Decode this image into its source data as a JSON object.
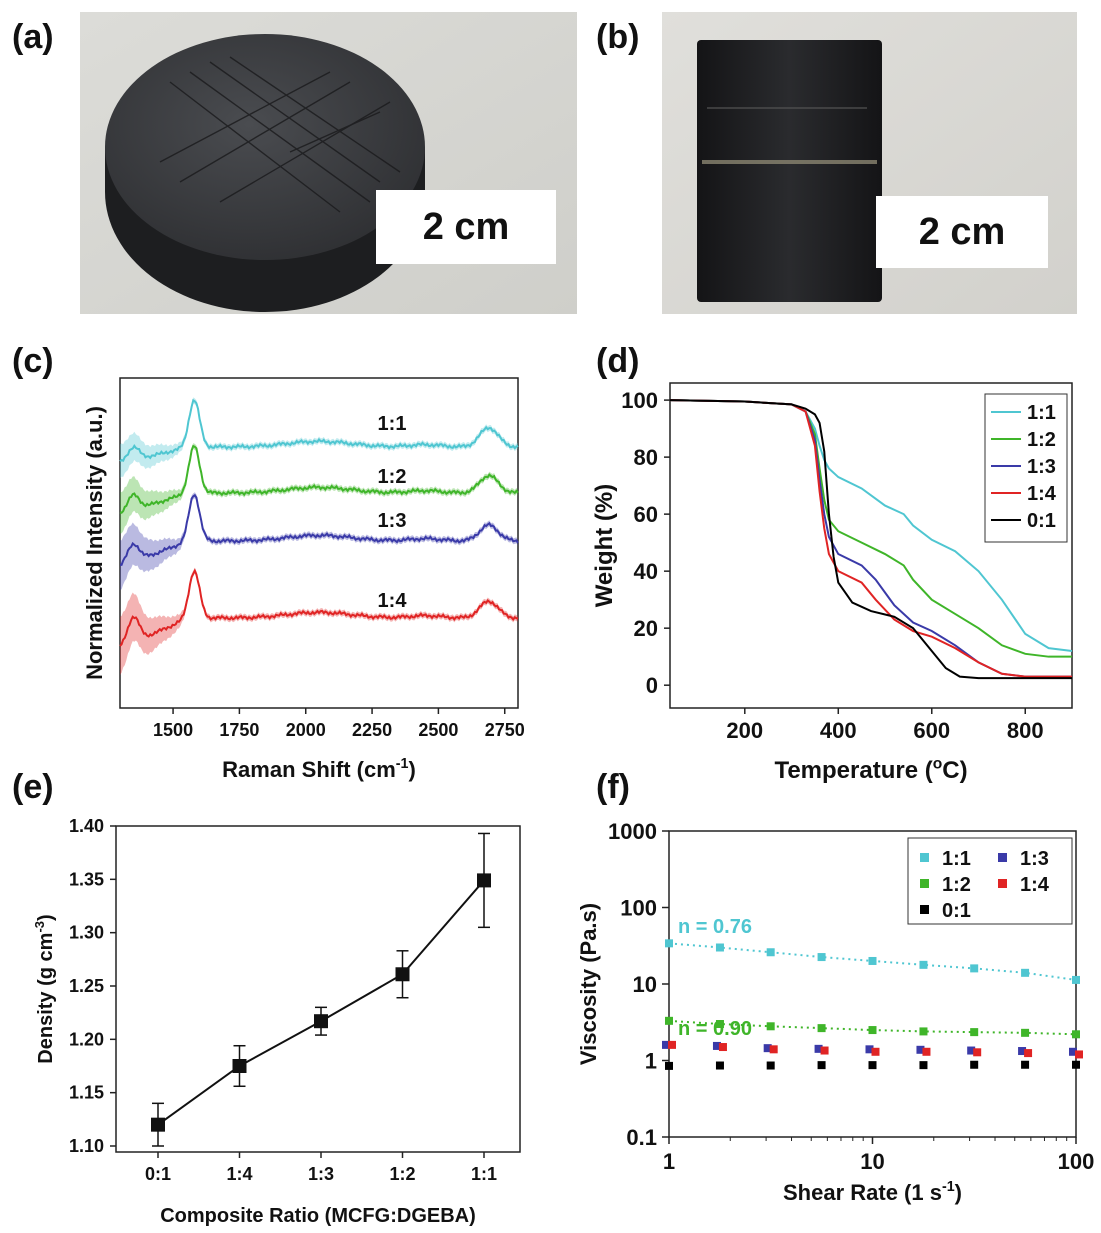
{
  "panels": {
    "a": {
      "label": "(a)",
      "scale_text": "2 cm"
    },
    "b": {
      "label": "(b)",
      "scale_text": "2 cm"
    },
    "c": {
      "label": "(c)"
    },
    "d": {
      "label": "(d)"
    },
    "e": {
      "label": "(e)"
    },
    "f": {
      "label": "(f)"
    }
  },
  "colors": {
    "r11": "#4fc6d1",
    "r12": "#3fb529",
    "r13": "#3a3aa8",
    "r14": "#e02424",
    "r01": "#000000"
  },
  "chart_data": [
    {
      "id": "c",
      "type": "line",
      "xlabel": "Raman Shift (cm-1)",
      "xlabel_base": "Raman Shift (cm",
      "xlabel_sup": "-1",
      "xlabel_end": ")",
      "ylabel": "Normalized Intensity (a.u.)",
      "xlim": [
        1300,
        2800
      ],
      "xticks": [
        1500,
        1750,
        2000,
        2250,
        2500,
        2750
      ],
      "series": [
        {
          "name": "1:1",
          "offset": 3.0,
          "peaks": {
            "D": 0.28,
            "G": 1.0,
            "2D": 0.75
          }
        },
        {
          "name": "1:2",
          "offset": 2.0,
          "peaks": {
            "D": 0.32,
            "G": 1.0,
            "2D": 0.68
          }
        },
        {
          "name": "1:3",
          "offset": 1.0,
          "peaks": {
            "D": 0.38,
            "G": 1.0,
            "2D": 0.62
          }
        },
        {
          "name": "1:4",
          "offset": 0.0,
          "peaks": {
            "D": 0.55,
            "G": 1.0,
            "2D": 0.65
          }
        }
      ]
    },
    {
      "id": "d",
      "type": "line",
      "xlabel": "Temperature (oC)",
      "xlabel_base": "Temperature (",
      "xlabel_sup": "o",
      "xlabel_end": "C)",
      "ylabel": "Weight (%)",
      "xlim": [
        40,
        900
      ],
      "ylim": [
        -8,
        106
      ],
      "xticks": [
        200,
        400,
        600,
        800
      ],
      "yticks": [
        0,
        20,
        40,
        60,
        80,
        100
      ],
      "legend": [
        "1:1",
        "1:2",
        "1:3",
        "1:4",
        "0:1"
      ],
      "legend_position": "top-right",
      "series": [
        {
          "name": "1:1",
          "x": [
            40,
            200,
            300,
            330,
            350,
            360,
            370,
            380,
            400,
            450,
            500,
            540,
            560,
            600,
            650,
            700,
            750,
            800,
            850,
            900
          ],
          "y": [
            100,
            99.5,
            98.5,
            96,
            90,
            84,
            79,
            76,
            73,
            69,
            63,
            60,
            56,
            51,
            47,
            40,
            30,
            18,
            13,
            12
          ]
        },
        {
          "name": "1:2",
          "x": [
            40,
            200,
            300,
            330,
            350,
            360,
            370,
            380,
            400,
            450,
            500,
            540,
            560,
            600,
            650,
            700,
            750,
            800,
            850,
            900
          ],
          "y": [
            100,
            99.5,
            98.5,
            96,
            88,
            76,
            65,
            58,
            54,
            50,
            46,
            42,
            37,
            30,
            25,
            20,
            14,
            11,
            10,
            10
          ]
        },
        {
          "name": "1:3",
          "x": [
            40,
            200,
            300,
            330,
            350,
            360,
            370,
            380,
            400,
            450,
            480,
            520,
            560,
            600,
            650,
            700,
            750,
            800,
            850,
            900
          ],
          "y": [
            100,
            99.5,
            98.5,
            96,
            86,
            72,
            60,
            52,
            46,
            42,
            37,
            28,
            22,
            19,
            14,
            8,
            4,
            3,
            3,
            3
          ]
        },
        {
          "name": "1:4",
          "x": [
            40,
            200,
            300,
            330,
            350,
            360,
            370,
            380,
            400,
            450,
            480,
            520,
            560,
            600,
            650,
            700,
            750,
            800,
            850,
            900
          ],
          "y": [
            100,
            99.5,
            98.5,
            96,
            84,
            68,
            55,
            46,
            40,
            36,
            30,
            23,
            19,
            17,
            13,
            8,
            4,
            3,
            3,
            3
          ]
        },
        {
          "name": "0:1",
          "x": [
            40,
            200,
            300,
            330,
            350,
            360,
            370,
            380,
            390,
            400,
            430,
            470,
            520,
            560,
            600,
            630,
            660,
            700,
            800,
            900
          ],
          "y": [
            100,
            99.5,
            98.5,
            97,
            95,
            92,
            82,
            60,
            45,
            36,
            29,
            26,
            24,
            20,
            12,
            6,
            3,
            2.5,
            2.5,
            2.5
          ]
        }
      ]
    },
    {
      "id": "e",
      "type": "line",
      "xlabel": "Composite Ratio (MCFG:DGEBA)",
      "ylabel": "Density (g cm-3)",
      "ylabel_base": "Density (g cm",
      "ylabel_sup": "-3",
      "ylabel_end": ")",
      "ylim": [
        1.1,
        1.4
      ],
      "yticks": [
        "1.10",
        "1.15",
        "1.20",
        "1.25",
        "1.30",
        "1.35",
        "1.40"
      ],
      "categories": [
        "0:1",
        "1:4",
        "1:3",
        "1:2",
        "1:1"
      ],
      "values": [
        1.12,
        1.175,
        1.217,
        1.261,
        1.349
      ],
      "errors": [
        0.02,
        0.019,
        0.013,
        0.022,
        0.044
      ]
    },
    {
      "id": "f",
      "type": "scatter",
      "xlabel": "Shear Rate (1 s-1)",
      "xlabel_base": "Shear Rate (1 s",
      "xlabel_sup": "-1",
      "xlabel_end": ")",
      "ylabel": "Viscosity (Pa.s)",
      "xscale": "log",
      "yscale": "log",
      "xlim": [
        1,
        100
      ],
      "ylim": [
        0.1,
        1000
      ],
      "xticks": [
        "1",
        "10",
        "100"
      ],
      "yticks": [
        "0.1",
        "1",
        "10",
        "100",
        "1000"
      ],
      "legend": [
        "1:1",
        "1:3",
        "1:2",
        "1:4",
        "0:1"
      ],
      "legend_position": "top-right",
      "x": [
        1,
        1.78,
        3.16,
        5.62,
        10,
        17.8,
        31.6,
        56.2,
        100
      ],
      "series": [
        {
          "name": "1:1",
          "y": [
            34,
            30,
            26,
            22.5,
            20,
            17.8,
            16,
            14,
            11.3
          ]
        },
        {
          "name": "1:2",
          "y": [
            3.3,
            3.0,
            2.8,
            2.65,
            2.5,
            2.4,
            2.35,
            2.3,
            2.2
          ]
        },
        {
          "name": "1:3",
          "y": [
            1.6,
            1.55,
            1.45,
            1.42,
            1.4,
            1.38,
            1.35,
            1.33,
            1.3
          ]
        },
        {
          "name": "1:4",
          "y": [
            1.6,
            1.5,
            1.4,
            1.35,
            1.3,
            1.3,
            1.28,
            1.25,
            1.2
          ]
        },
        {
          "name": "0:1",
          "y": [
            0.85,
            0.86,
            0.86,
            0.87,
            0.87,
            0.87,
            0.88,
            0.88,
            0.88
          ]
        }
      ],
      "annotations": [
        {
          "text": "n = 0.76",
          "series": "1:1"
        },
        {
          "text": "n = 0.90",
          "series": "1:2"
        }
      ]
    }
  ]
}
